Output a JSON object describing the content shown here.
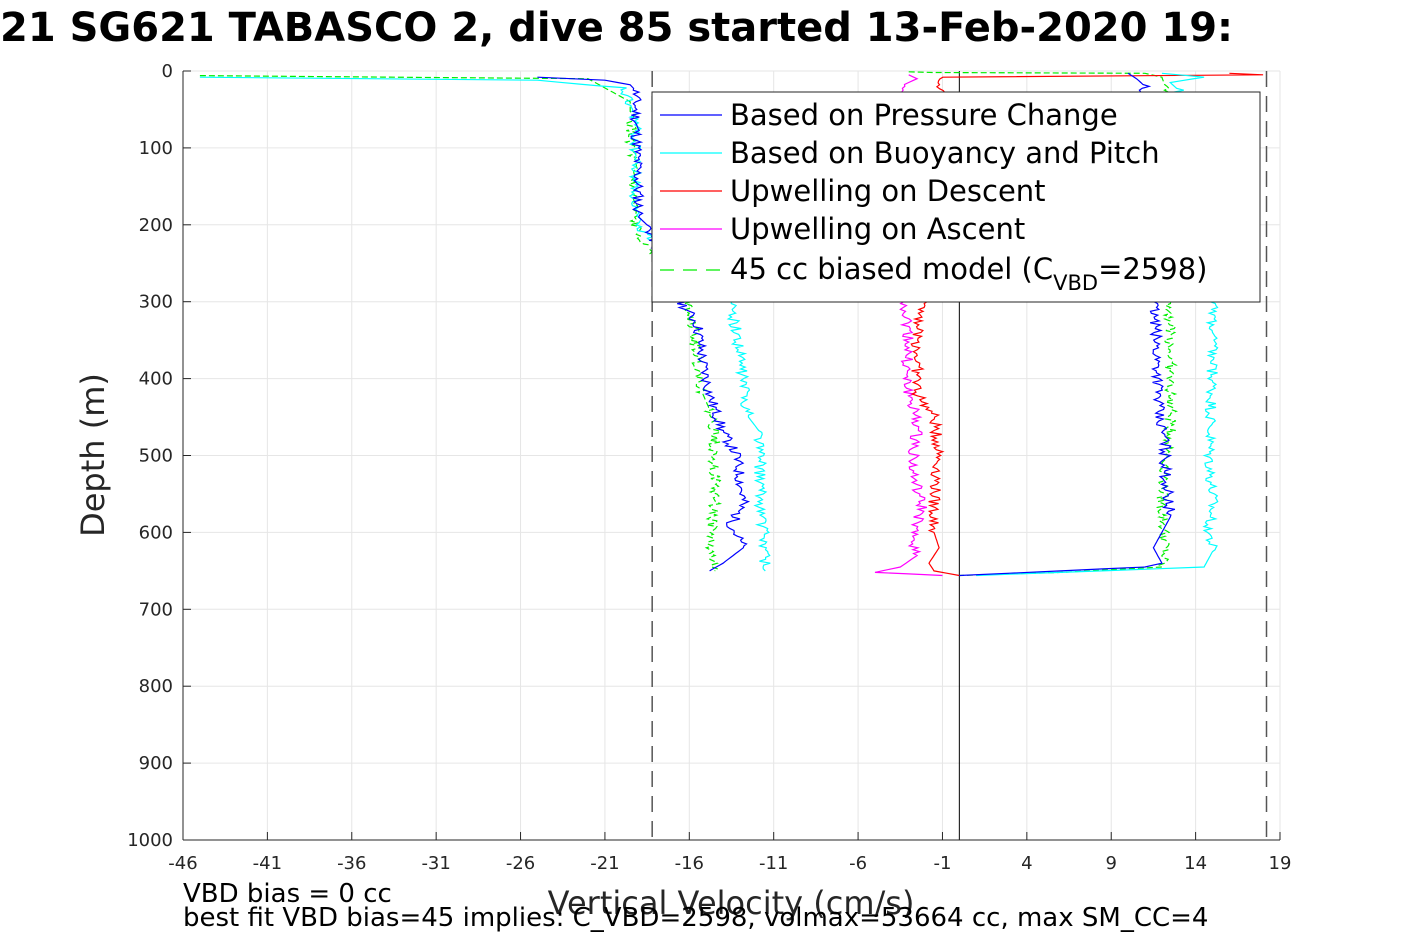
{
  "title": "21 SG621 TABASCO 2, dive 85 started 13-Feb-2020 19:",
  "notes": {
    "vbd_bias": "VBD bias = 0 cc",
    "best_fit": "best fit VBD bias=45 implies: C_VBD=2598, volmax=53664 cc, max SM_CC=4"
  },
  "chart_data": {
    "type": "line",
    "xlabel": "Vertical Velocity (cm/s)",
    "ylabel": "Depth (m)",
    "xlim": [
      -46,
      19
    ],
    "ylim": [
      0,
      1000
    ],
    "y_reversed": true,
    "xticks": [
      -46,
      -41,
      -36,
      -31,
      -26,
      -21,
      -16,
      -11,
      -6,
      -1,
      4,
      9,
      14,
      19
    ],
    "yticks": [
      0,
      100,
      200,
      300,
      400,
      500,
      600,
      700,
      800,
      900,
      1000
    ],
    "grid": true,
    "legend_position": "top-right",
    "reference_lines": {
      "zero_x": 0,
      "dashed_x": [
        -18.2,
        18.2
      ],
      "dashed_color": "#555555"
    },
    "series": [
      {
        "name": "Based on Pressure Change",
        "color": "#0000ff",
        "style": "solid",
        "descent": [
          [
            -25,
            8
          ],
          [
            -21,
            12
          ],
          [
            -19.5,
            18
          ],
          [
            -19.2,
            25
          ],
          [
            -19,
            190
          ],
          [
            -18.5,
            200
          ],
          [
            -16.5,
            300
          ],
          [
            -15.5,
            330
          ],
          [
            -15.2,
            380
          ],
          [
            -14.8,
            420
          ],
          [
            -14,
            470
          ],
          [
            -13.2,
            500
          ],
          [
            -12.8,
            560
          ],
          [
            -13.5,
            590
          ],
          [
            -12.8,
            620
          ],
          [
            -14,
            640
          ],
          [
            -14.8,
            650
          ]
        ],
        "ascent": [
          [
            10,
            3
          ],
          [
            10.5,
            10
          ],
          [
            11,
            20
          ],
          [
            11.5,
            300
          ],
          [
            11.8,
            400
          ],
          [
            11.8,
            450
          ],
          [
            12.2,
            480
          ],
          [
            12.2,
            520
          ],
          [
            12.5,
            580
          ],
          [
            12,
            600
          ],
          [
            11.5,
            620
          ],
          [
            12,
            640
          ],
          [
            11,
            645
          ],
          [
            6,
            650
          ],
          [
            0,
            656
          ]
        ]
      },
      {
        "name": "Based on Buoyancy and Pitch",
        "color": "#00ffff",
        "style": "solid",
        "descent": [
          [
            -45,
            8
          ],
          [
            -25,
            12
          ],
          [
            -20,
            22
          ],
          [
            -19.2,
            60
          ],
          [
            -19.2,
            200
          ],
          [
            -13.5,
            300
          ],
          [
            -12.8,
            400
          ],
          [
            -12.5,
            450
          ],
          [
            -11.8,
            470
          ],
          [
            -11.8,
            560
          ],
          [
            -11.5,
            620
          ],
          [
            -11.5,
            650
          ]
        ],
        "ascent": [
          [
            12,
            3
          ],
          [
            14.5,
            8
          ],
          [
            12.5,
            15
          ],
          [
            13,
            25
          ],
          [
            15,
            300
          ],
          [
            15,
            400
          ],
          [
            14.8,
            500
          ],
          [
            15,
            560
          ],
          [
            14.8,
            600
          ],
          [
            15,
            625
          ],
          [
            14.5,
            645
          ],
          [
            6,
            652
          ],
          [
            1,
            656
          ]
        ]
      },
      {
        "name": "Upwelling on Descent",
        "color": "#ff0000",
        "style": "solid",
        "values": [
          [
            16,
            3
          ],
          [
            18,
            5
          ],
          [
            -1,
            8
          ],
          [
            -2,
            300
          ],
          [
            -2.5,
            340
          ],
          [
            -2.5,
            420
          ],
          [
            -1.5,
            450
          ],
          [
            -1.2,
            500
          ],
          [
            -1.5,
            560
          ],
          [
            -1.5,
            600
          ],
          [
            -1.2,
            620
          ],
          [
            -1.8,
            640
          ],
          [
            -1.5,
            650
          ],
          [
            0,
            656
          ]
        ]
      },
      {
        "name": "Upwelling on Ascent",
        "color": "#ff00ff",
        "style": "solid",
        "values": [
          [
            -3,
            5
          ],
          [
            -2.5,
            10
          ],
          [
            -3.5,
            20
          ],
          [
            -3.2,
            300
          ],
          [
            -3,
            350
          ],
          [
            -3.2,
            400
          ],
          [
            -2.5,
            460
          ],
          [
            -2.8,
            520
          ],
          [
            -2.2,
            570
          ],
          [
            -2.8,
            600
          ],
          [
            -2.5,
            630
          ],
          [
            -3.5,
            645
          ],
          [
            -5,
            652
          ],
          [
            -1,
            656
          ]
        ]
      },
      {
        "name": "45 cc biased model (C",
        "name_sub": "VBD",
        "name_suffix": "=2598)",
        "color": "#00ee00",
        "style": "dashed",
        "descent": [
          [
            -45,
            6
          ],
          [
            -22,
            10
          ],
          [
            -20.5,
            28
          ],
          [
            -19.5,
            40
          ],
          [
            -19.5,
            55
          ],
          [
            -19.3,
            200
          ],
          [
            -16,
            300
          ],
          [
            -15.5,
            380
          ],
          [
            -15.2,
            420
          ],
          [
            -14.8,
            440
          ],
          [
            -14.5,
            470
          ],
          [
            -14.5,
            560
          ],
          [
            -14.8,
            620
          ],
          [
            -14.5,
            650
          ]
        ],
        "ascent": [
          [
            -3,
            1
          ],
          [
            -1.5,
            2
          ],
          [
            11,
            3
          ],
          [
            12,
            8
          ],
          [
            12.2,
            20
          ],
          [
            12.5,
            300
          ],
          [
            12.5,
            400
          ],
          [
            12.5,
            470
          ],
          [
            12,
            560
          ],
          [
            12.2,
            620
          ],
          [
            12,
            645
          ],
          [
            6,
            652
          ],
          [
            0,
            656
          ]
        ]
      }
    ]
  }
}
